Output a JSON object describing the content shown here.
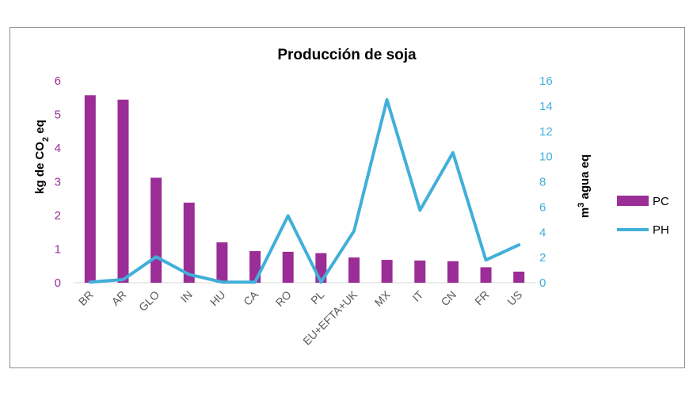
{
  "chart_data": {
    "type": "bar+line",
    "title": "Producción de soja",
    "categories": [
      "BR",
      "AR",
      "GLO",
      "IN",
      "HU",
      "CA",
      "RO",
      "PL",
      "EU+EFTA+UK",
      "MX",
      "IT",
      "CN",
      "FR",
      "US"
    ],
    "series": [
      {
        "name": "PC",
        "type": "bar",
        "axis": "left",
        "color": "#9b2d96",
        "values": [
          5.57,
          5.44,
          3.12,
          2.38,
          1.2,
          0.94,
          0.92,
          0.88,
          0.75,
          0.68,
          0.66,
          0.64,
          0.46,
          0.33
        ]
      },
      {
        "name": "PH",
        "type": "line",
        "axis": "right",
        "color": "#41afd8",
        "values": [
          0.05,
          0.25,
          2.05,
          0.65,
          0.05,
          0.05,
          5.3,
          0.05,
          4.1,
          14.5,
          5.75,
          10.3,
          1.8,
          3.0
        ]
      }
    ],
    "y_left": {
      "label_main": "kg  de CO",
      "label_sub": "2",
      "label_end": " eq",
      "range": [
        0,
        6
      ],
      "ticks": [
        "0",
        "1",
        "2",
        "3",
        "4",
        "5",
        "6"
      ],
      "color": "#9b2d96"
    },
    "y_right": {
      "label_sup": "3",
      "label_main": " agua eq",
      "label_prefix": "m",
      "range": [
        0,
        16
      ],
      "ticks": [
        "0",
        "2",
        "4",
        "6",
        "8",
        "10",
        "12",
        "14",
        "16"
      ],
      "color": "#41afd8"
    },
    "grid": false,
    "legend_position": "right"
  }
}
